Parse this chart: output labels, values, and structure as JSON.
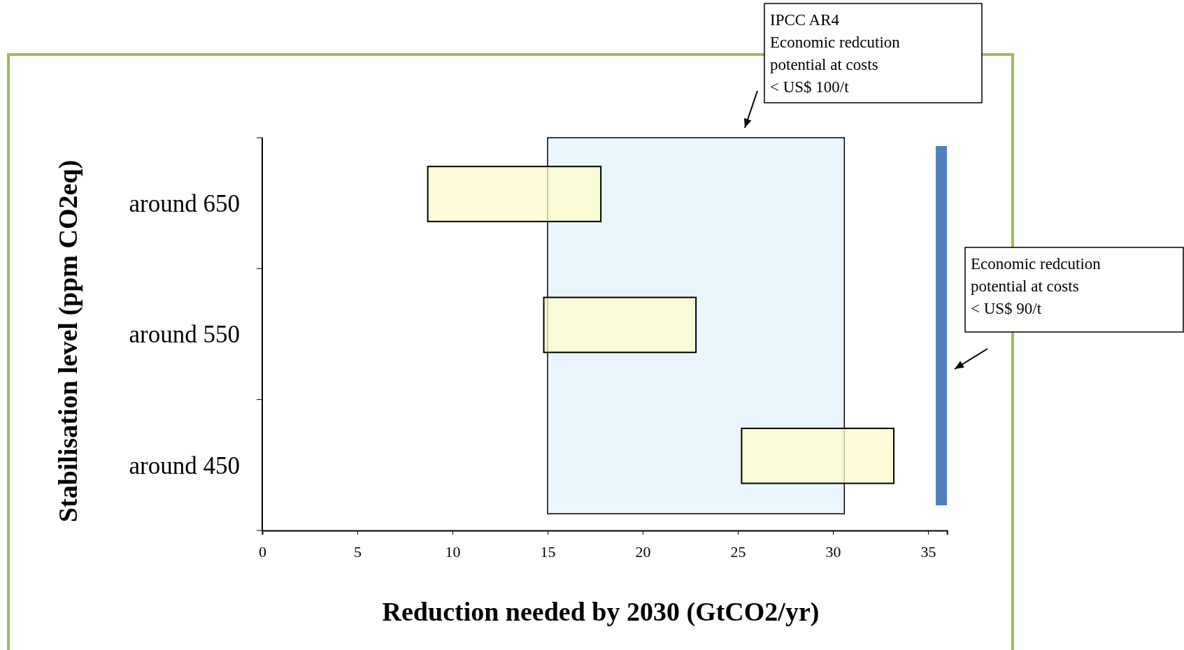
{
  "chart_data": {
    "type": "bar",
    "orientation": "horizontal",
    "xlabel": "Reduction needed by 2030 (GtCO2/yr)",
    "ylabel": "Stabilisation level (ppm CO2eq)",
    "categories": [
      "around 650",
      "around 550",
      "around 450"
    ],
    "values": [
      9.1,
      8.0,
      8.0
    ],
    "base": [
      8.7,
      14.8,
      25.2
    ],
    "color": "#fdfbc9",
    "xlim": [
      0,
      36
    ],
    "xticks": [
      0,
      5,
      10,
      15,
      20,
      25,
      30,
      35
    ],
    "bands": [
      {
        "axis": "x",
        "from": 15,
        "to": 30.6,
        "color": "#eaf6fb",
        "label": "IPCC AR4\nEconomic redcution\npotential at costs\n< US$ 100/t"
      }
    ],
    "ref_lines": [
      {
        "axis": "x",
        "value": 35.7,
        "color": "#4f81bd",
        "label": "Economic redcution\npotential at costs\n< US$ 90/t"
      }
    ]
  }
}
